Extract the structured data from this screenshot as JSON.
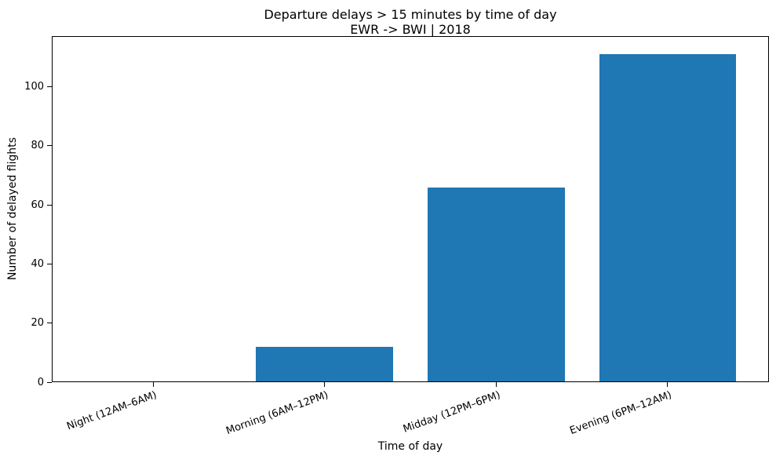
{
  "chart_data": {
    "type": "bar",
    "title": "Departure delays > 15 minutes by time of day",
    "subtitle": "EWR -> BWI | 2018",
    "categories": [
      "Night (12AM–6AM)",
      "Morning (6AM–12PM)",
      "Midday (12PM–6PM)",
      "Evening (6PM–12AM)"
    ],
    "values": [
      0,
      12,
      66,
      111
    ],
    "xlabel": "Time of day",
    "ylabel": "Number of delayed flights",
    "yticks": [
      0,
      20,
      40,
      60,
      80,
      100
    ],
    "ylim": [
      0,
      117.2
    ],
    "xlim": [
      -0.59,
      3.59
    ],
    "bar_width": 0.8,
    "bar_color": "#1f77b4",
    "spine_color": "#000000",
    "grid": false,
    "legend_position": "none",
    "x_tick_rotation_deg": 20
  }
}
